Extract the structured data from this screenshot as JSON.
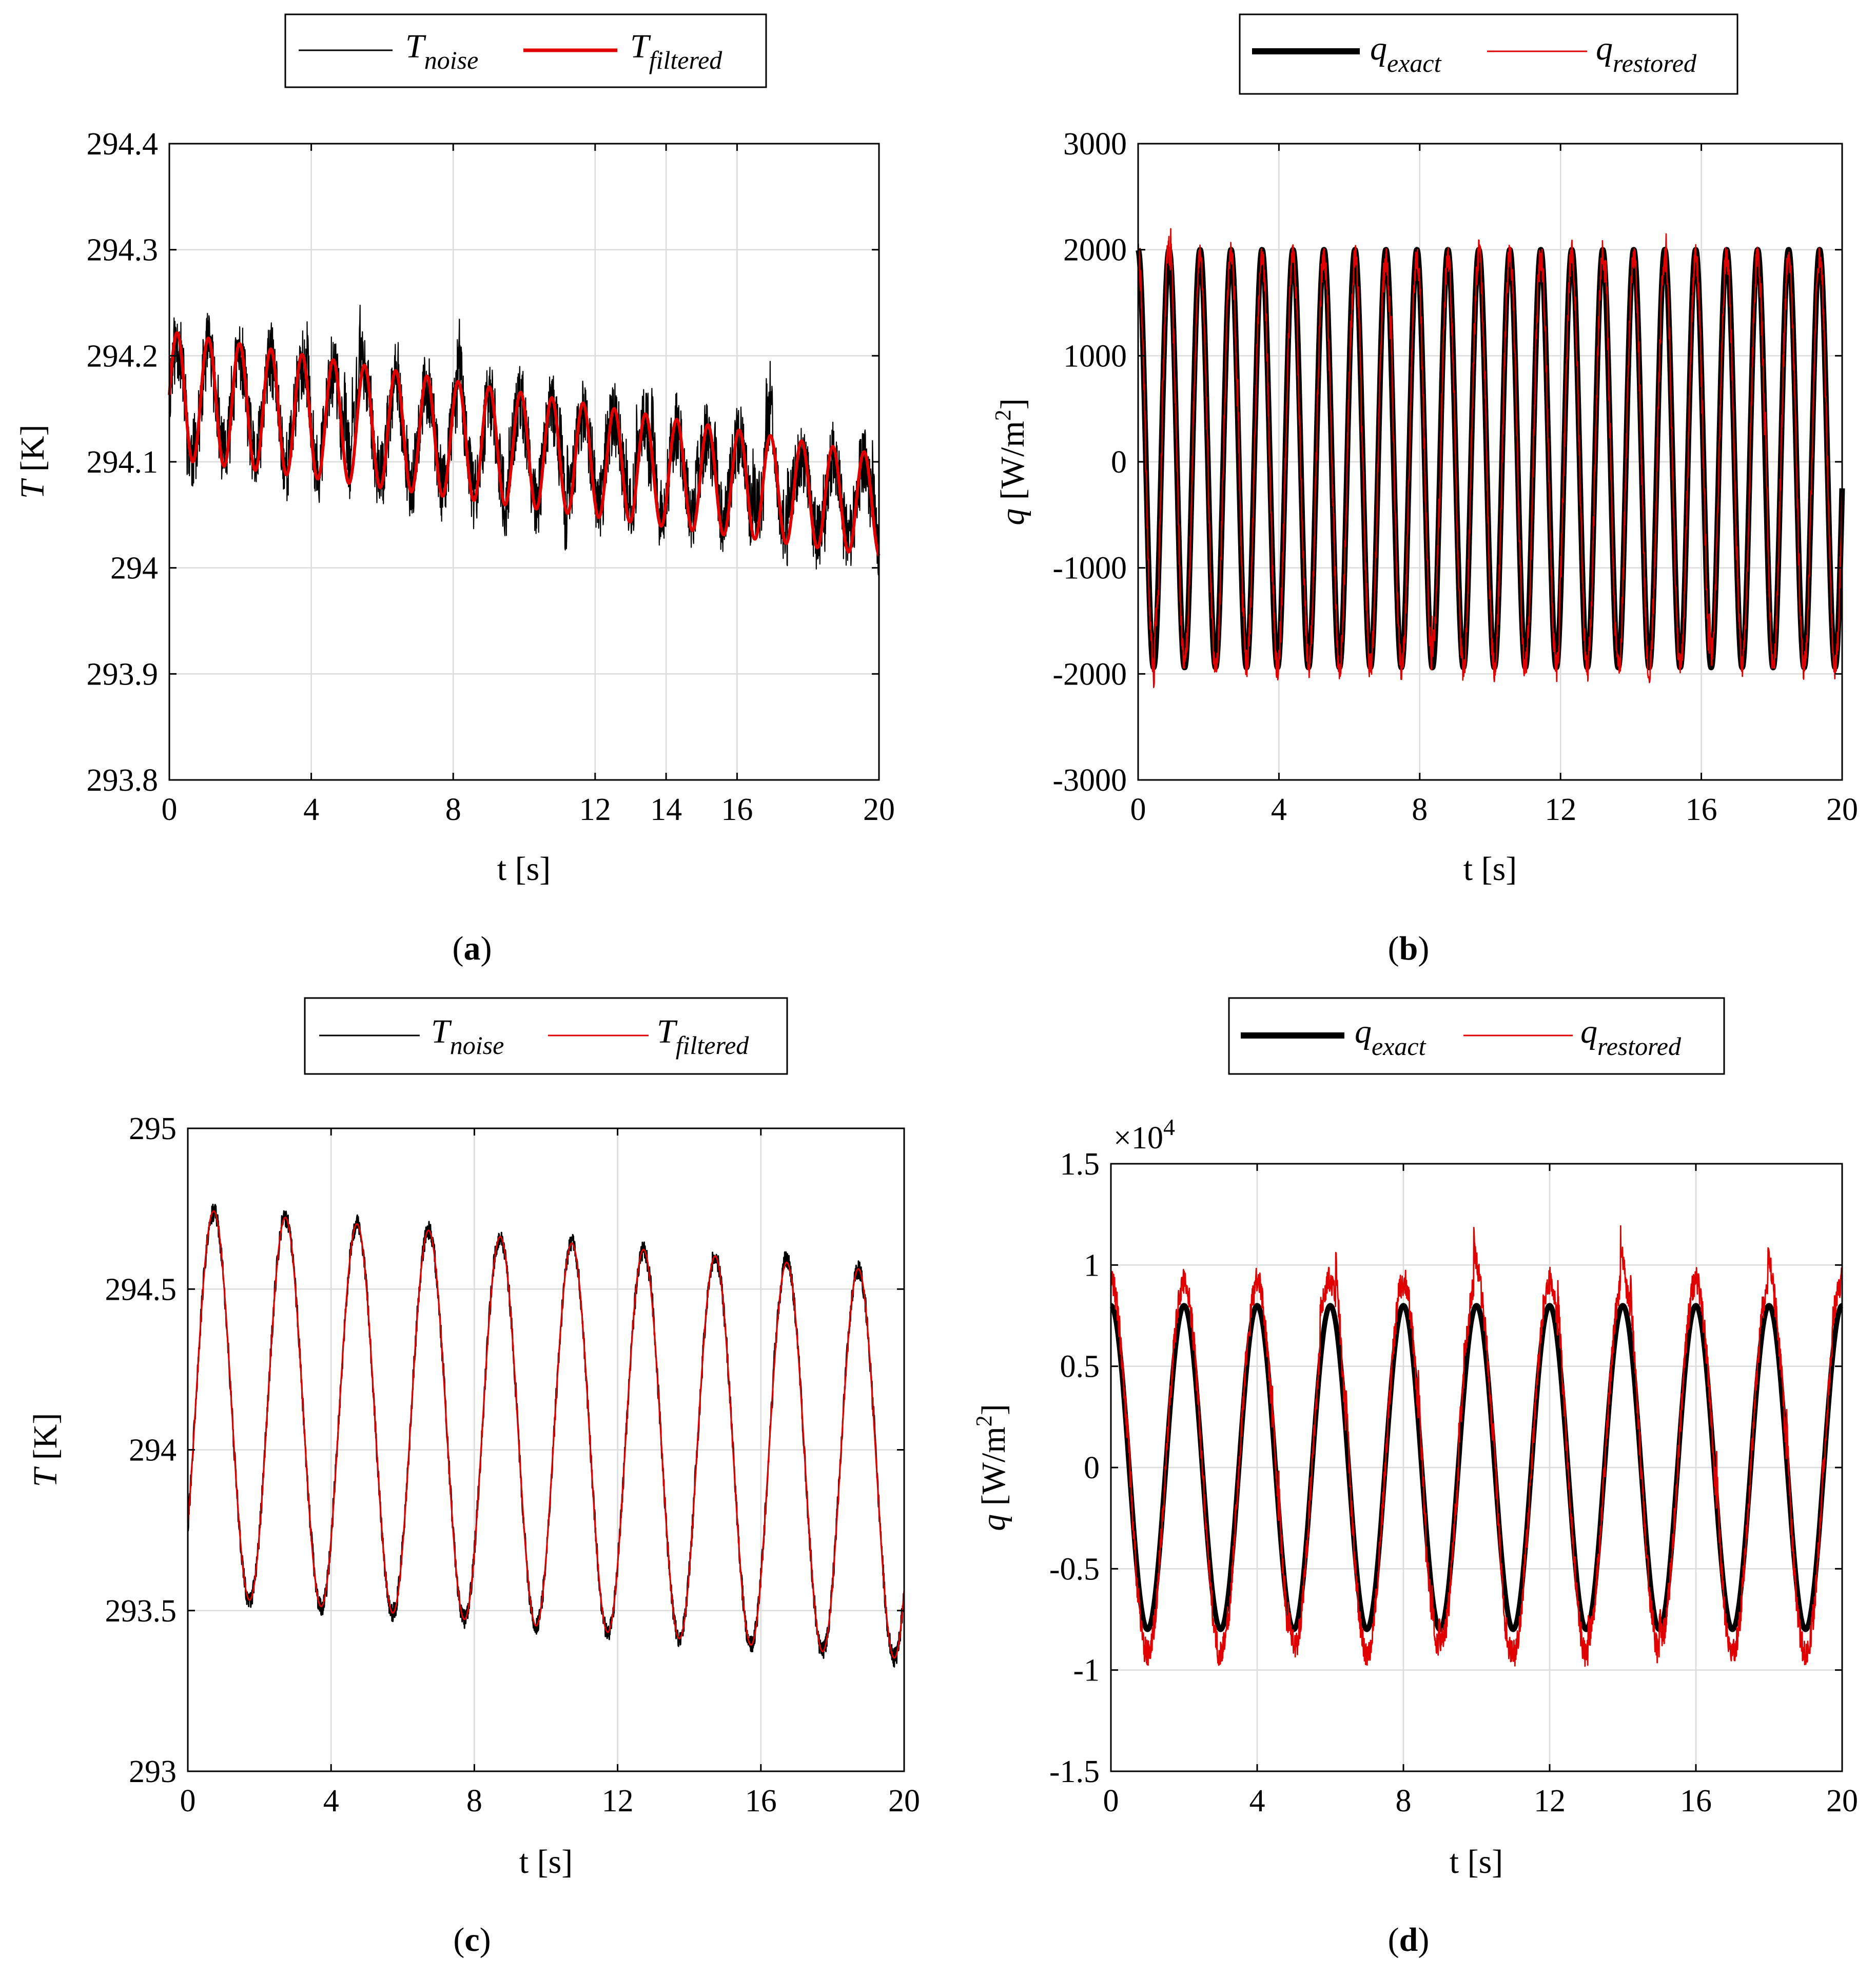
{
  "chart_data": [
    {
      "id": "a",
      "type": "line",
      "panel_label": "a",
      "xlabel": "t [s]",
      "ylabel_var": "T",
      "ylabel_unit": " [K]",
      "xlim": [
        0,
        20
      ],
      "ylim": [
        293.8,
        294.4
      ],
      "xticks": [
        0,
        4,
        8,
        12,
        14,
        16,
        20
      ],
      "xtick_labels": [
        "0",
        "4",
        "8",
        "12",
        "14",
        "16",
        "20"
      ],
      "yticks": [
        293.8,
        293.9,
        294,
        294.1,
        294.2,
        294.3,
        294.4
      ],
      "ytick_labels": [
        "293.8",
        "293.9",
        "294",
        "294.1",
        "294.2",
        "294.3",
        "294.4"
      ],
      "grid": true,
      "legend": "top (outside)",
      "legend_order": [
        "noise",
        "filtered"
      ],
      "series": [
        {
          "key": "noise",
          "name_base": "T",
          "name_sub": "noise",
          "color": "#000000",
          "model": {
            "offset": 294.163,
            "drift": -0.0052,
            "amp": 0.05,
            "amp_decay": 0.0006,
            "period": 0.88,
            "phase": 0.0,
            "noise": 0.035,
            "spikes": 0.05,
            "seed": 11
          }
        },
        {
          "key": "filtered",
          "name_base": "T",
          "name_sub": "filtered",
          "color": "#e00000",
          "model": {
            "offset": 294.163,
            "drift": -0.0052,
            "amp": 0.06,
            "amp_decay": 0.0006,
            "period": 0.88,
            "phase": 0.0,
            "noise": 0.0,
            "spikes": 0.0,
            "seed": 12
          }
        }
      ]
    },
    {
      "id": "b",
      "type": "line",
      "panel_label": "b",
      "xlabel": "t [s]",
      "ylabel_var": "q",
      "ylabel_unit": " [W/m",
      "ylabel_sup": "2",
      "ylabel_tail": "]",
      "xlim": [
        0,
        20
      ],
      "ylim": [
        -3000,
        3000
      ],
      "xticks": [
        0,
        4,
        8,
        12,
        16,
        20
      ],
      "xtick_labels": [
        "0",
        "4",
        "8",
        "12",
        "16",
        "20"
      ],
      "yticks": [
        -3000,
        -2000,
        -1000,
        0,
        1000,
        2000,
        3000
      ],
      "ytick_labels": [
        "-3000",
        "-2000",
        "-1000",
        "0",
        "1000",
        "2000",
        "3000"
      ],
      "grid": true,
      "legend": "top (outside)",
      "legend_order": [
        "exact",
        "restored"
      ],
      "series": [
        {
          "key": "exact",
          "name_base": "q",
          "name_sub": "exact",
          "color": "#000000",
          "model": {
            "offset": 30,
            "drift": 0,
            "amp": 1970,
            "amp_decay": 0,
            "period": 0.88,
            "phase": 1.571,
            "noise": 0,
            "spikes": 0,
            "seed": 21
          }
        },
        {
          "key": "restored",
          "name_base": "q",
          "name_sub": "restored",
          "color": "#e00000",
          "model": {
            "offset": 0,
            "drift": 0,
            "amp": 1950,
            "amp_decay": 0,
            "period": 0.88,
            "phase": 1.571,
            "noise": 140,
            "spikes": 380,
            "seed": 22
          }
        }
      ]
    },
    {
      "id": "c",
      "type": "line",
      "panel_label": "c",
      "xlabel": "t [s]",
      "ylabel_var": "T",
      "ylabel_unit": " [K]",
      "xlim": [
        0,
        20
      ],
      "ylim": [
        293,
        295
      ],
      "xticks": [
        0,
        4,
        8,
        12,
        16,
        20
      ],
      "xtick_labels": [
        "0",
        "4",
        "8",
        "12",
        "16",
        "20"
      ],
      "yticks": [
        293,
        293.5,
        294,
        294.5,
        295
      ],
      "ytick_labels": [
        "293",
        "293.5",
        "294",
        "294.5",
        "295"
      ],
      "grid": true,
      "legend": "top (outside)",
      "legend_order": [
        "noise",
        "filtered"
      ],
      "series": [
        {
          "key": "noise",
          "name_base": "T",
          "name_sub": "noise",
          "color": "#000000",
          "model": {
            "offset": 294.15,
            "drift": -0.01,
            "amp": 0.6,
            "amp_decay": 0.0,
            "period": 2.0,
            "phase": -0.7,
            "noise": 0.03,
            "spikes": 0.02,
            "seed": 31
          }
        },
        {
          "key": "filtered",
          "name_base": "T",
          "name_sub": "filtered",
          "color": "#e00000",
          "model": {
            "offset": 294.15,
            "drift": -0.01,
            "amp": 0.6,
            "amp_decay": 0.0,
            "period": 2.0,
            "phase": -0.7,
            "noise": 0.0,
            "spikes": 0.0,
            "seed": 32
          }
        }
      ]
    },
    {
      "id": "d",
      "type": "line",
      "panel_label": "d",
      "xlabel": "t [s]",
      "ylabel_var": "q",
      "ylabel_unit": " [W/m",
      "ylabel_sup": "2",
      "ylabel_tail": "]",
      "y_multiplier_base": "×10",
      "y_multiplier_exp": "4",
      "xlim": [
        0,
        20
      ],
      "ylim": [
        -1.5,
        1.5
      ],
      "xticks": [
        0,
        4,
        8,
        12,
        16,
        20
      ],
      "xtick_labels": [
        "0",
        "4",
        "8",
        "12",
        "16",
        "20"
      ],
      "yticks": [
        -1.5,
        -1,
        -0.5,
        0,
        0.5,
        1,
        1.5
      ],
      "ytick_labels": [
        "-1.5",
        "-1",
        "-0.5",
        "0",
        "0.5",
        "1",
        "1.5"
      ],
      "grid": true,
      "legend": "top (outside)",
      "legend_order": [
        "exact",
        "restored"
      ],
      "series": [
        {
          "key": "exact",
          "name_base": "q",
          "name_sub": "exact",
          "color": "#000000",
          "model": {
            "offset": 0,
            "drift": 0,
            "amp": 0.8,
            "amp_decay": 0,
            "period": 2.0,
            "phase": 1.571,
            "noise": 0,
            "spikes": 0,
            "seed": 41
          }
        },
        {
          "key": "restored",
          "name_base": "q",
          "name_sub": "restored",
          "color": "#e00000",
          "model": {
            "offset": 0,
            "drift": 0,
            "amp": 0.92,
            "amp_decay": 0,
            "period": 2.0,
            "phase": 1.571,
            "noise": 0.07,
            "spikes": 0.18,
            "seed": 42
          }
        }
      ]
    }
  ]
}
